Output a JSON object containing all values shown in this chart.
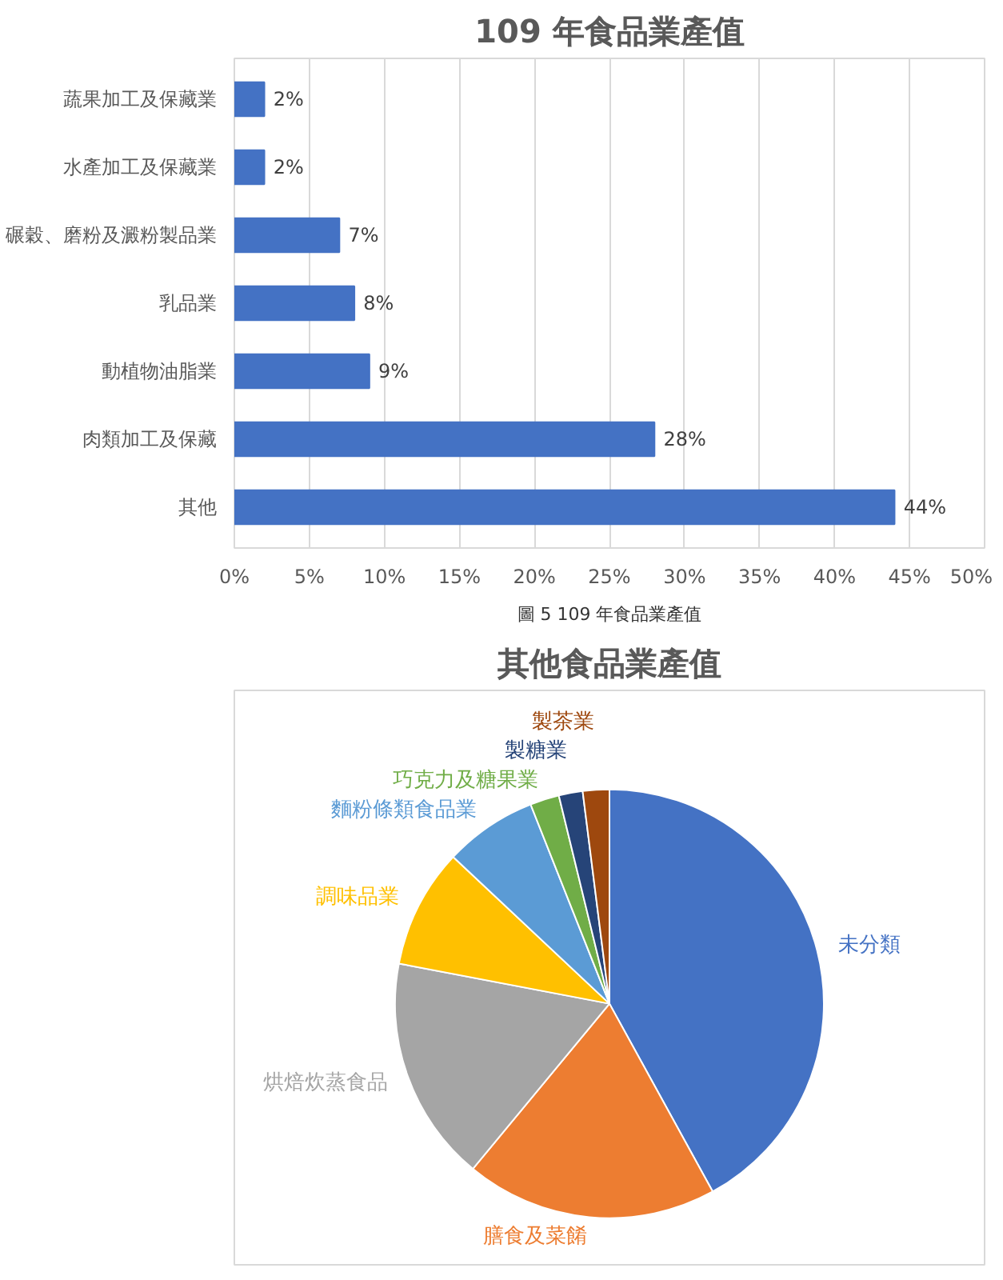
{
  "chart_data": [
    {
      "type": "bar",
      "orientation": "horizontal",
      "title": "109 年食品業產值",
      "categories": [
        "蔬果加工及保藏業",
        "水產加工及保藏業",
        "碾穀、磨粉及澱粉製品業",
        "乳品業",
        "動植物油脂業",
        "肉類加工及保藏",
        "其他"
      ],
      "values": [
        2,
        2,
        7,
        8,
        9,
        28,
        44
      ],
      "value_labels": [
        "2%",
        "2%",
        "7%",
        "8%",
        "9%",
        "28%",
        "44%"
      ],
      "color": "#4472c4",
      "xlim": [
        0,
        50
      ],
      "xticks": [
        {
          "value": 0,
          "label": "0%"
        },
        {
          "value": 5,
          "label": "5%"
        },
        {
          "value": 10,
          "label": "10%"
        },
        {
          "value": 15,
          "label": "15%"
        },
        {
          "value": 20,
          "label": "20%"
        },
        {
          "value": 25,
          "label": "25%"
        },
        {
          "value": 30,
          "label": "30%"
        },
        {
          "value": 35,
          "label": "35%"
        },
        {
          "value": 40,
          "label": "40%"
        },
        {
          "value": 45,
          "label": "45%"
        },
        {
          "value": 50,
          "label": "50%"
        }
      ],
      "grid": "x",
      "annotations": [
        "圖 5 109 年食品業產值"
      ]
    },
    {
      "type": "pie",
      "title": "其他食品業產值",
      "categories": [
        "未分類",
        "膳食及菜餚",
        "烘焙炊蒸食品",
        "調味品業",
        "麵粉條類食品業",
        "巧克力及糖果業",
        "製糖業",
        "製茶業"
      ],
      "values": [
        42,
        19,
        17,
        9,
        7,
        2.2,
        1.8,
        2
      ],
      "colors": [
        "#4472c4",
        "#ed7d31",
        "#a5a5a5",
        "#ffc000",
        "#5b9bd5",
        "#70ad47",
        "#264478",
        "#9e480e"
      ]
    }
  ]
}
